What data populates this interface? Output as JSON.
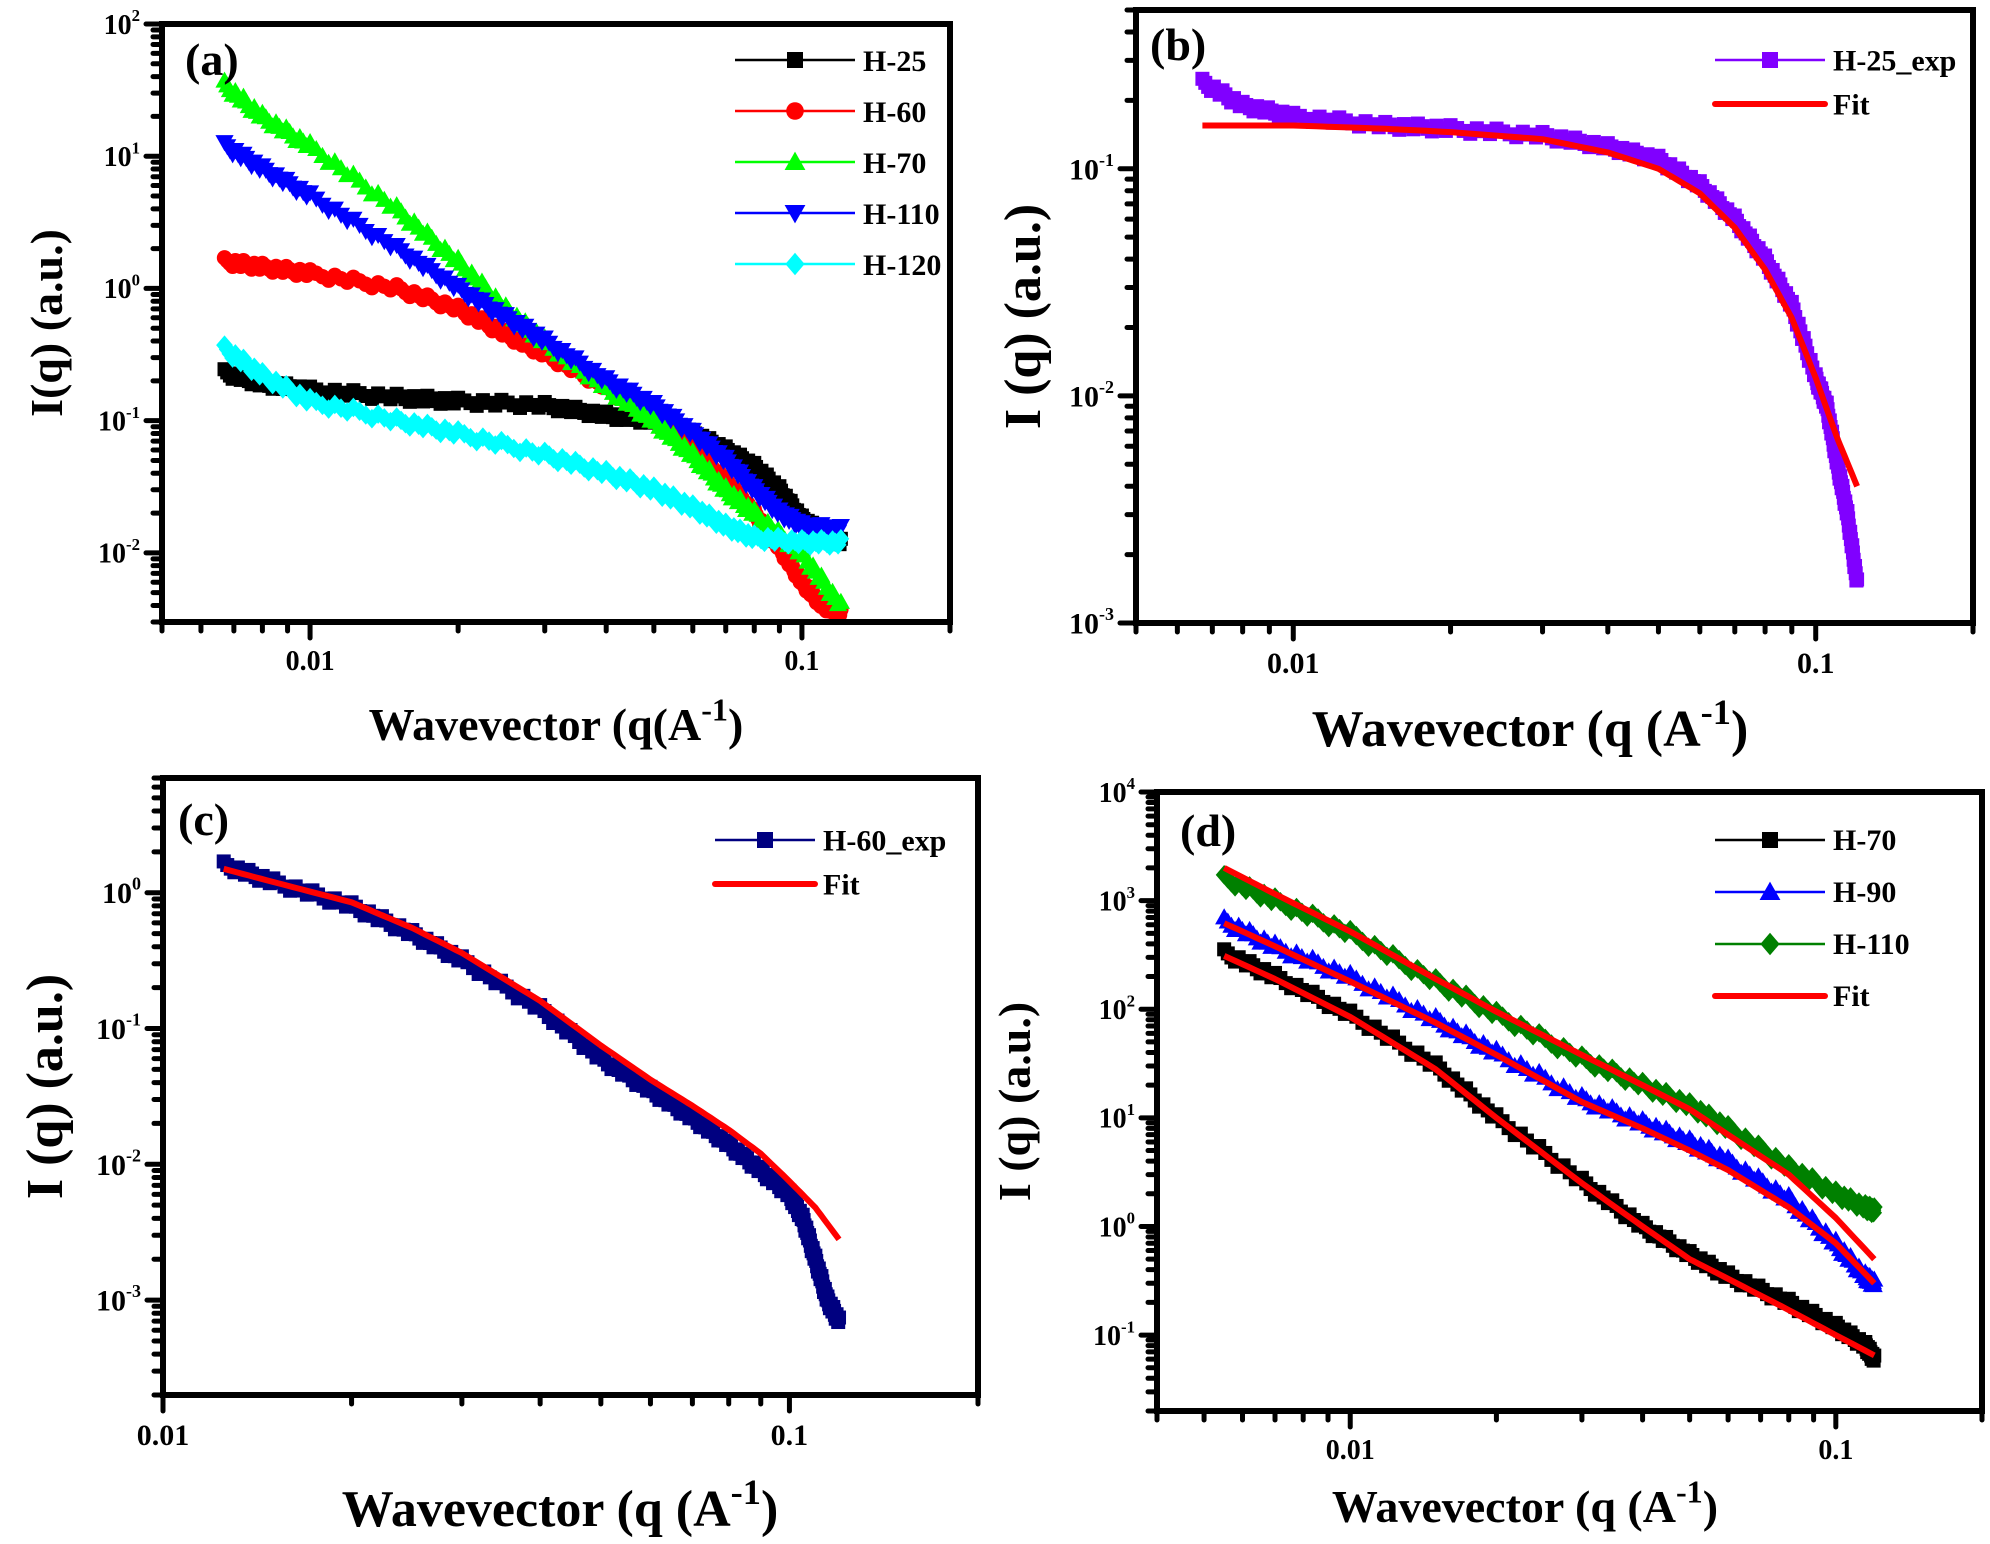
{
  "chart_data": [
    {
      "type": "scatter",
      "panel_label": "(a)",
      "xscale": "log",
      "yscale": "log",
      "xlim": [
        0.005,
        0.2
      ],
      "ylim": [
        0.003,
        100
      ],
      "xlabel": "Wavevector (q(A",
      "xlabel_sup": "-1",
      "xlabel_end": ")",
      "ylabel": "I(q) (a.u.)",
      "xticks": [
        {
          "v": 0.01,
          "label": "0.01"
        },
        {
          "v": 0.1,
          "label": "0.1"
        }
      ],
      "yticks": [
        {
          "v": 0.01,
          "base": "10",
          "exp": "-2"
        },
        {
          "v": 0.1,
          "base": "10",
          "exp": "-1"
        },
        {
          "v": 1,
          "base": "10",
          "exp": "0"
        },
        {
          "v": 10,
          "base": "10",
          "exp": "1"
        },
        {
          "v": 100,
          "base": "10",
          "exp": "2"
        }
      ],
      "legend_position": "top-right",
      "series": [
        {
          "name": "H-25",
          "color": "#000000",
          "marker": "square",
          "x": [
            0.0067,
            0.008,
            0.01,
            0.015,
            0.02,
            0.03,
            0.04,
            0.05,
            0.06,
            0.07,
            0.08,
            0.09,
            0.1,
            0.11,
            0.12
          ],
          "y": [
            0.23,
            0.19,
            0.17,
            0.15,
            0.14,
            0.13,
            0.11,
            0.1,
            0.08,
            0.06,
            0.045,
            0.03,
            0.018,
            0.014,
            0.012
          ]
        },
        {
          "name": "H-60",
          "color": "#ff0000",
          "marker": "circle",
          "x": [
            0.0067,
            0.008,
            0.01,
            0.015,
            0.02,
            0.025,
            0.03,
            0.04,
            0.05,
            0.06,
            0.07,
            0.08,
            0.09,
            0.1,
            0.11,
            0.12
          ],
          "y": [
            1.6,
            1.45,
            1.3,
            1.0,
            0.7,
            0.45,
            0.32,
            0.18,
            0.1,
            0.06,
            0.035,
            0.02,
            0.011,
            0.006,
            0.004,
            0.0035
          ]
        },
        {
          "name": "H-70",
          "color": "#00ff00",
          "marker": "triangle-up",
          "x": [
            0.0067,
            0.008,
            0.01,
            0.015,
            0.02,
            0.025,
            0.03,
            0.04,
            0.05,
            0.06,
            0.07,
            0.08,
            0.1,
            0.12
          ],
          "y": [
            35,
            20,
            12,
            4,
            1.6,
            0.7,
            0.4,
            0.18,
            0.1,
            0.055,
            0.03,
            0.02,
            0.01,
            0.004
          ]
        },
        {
          "name": "H-110",
          "color": "#0000ff",
          "marker": "triangle-down",
          "x": [
            0.0067,
            0.008,
            0.01,
            0.015,
            0.02,
            0.025,
            0.03,
            0.04,
            0.05,
            0.06,
            0.07,
            0.08,
            0.09,
            0.1,
            0.12
          ],
          "y": [
            12,
            8,
            5,
            2,
            1.0,
            0.6,
            0.4,
            0.2,
            0.13,
            0.08,
            0.05,
            0.03,
            0.02,
            0.016,
            0.015
          ]
        },
        {
          "name": "H-120",
          "color": "#00ffff",
          "marker": "diamond",
          "x": [
            0.0067,
            0.008,
            0.01,
            0.015,
            0.02,
            0.03,
            0.04,
            0.05,
            0.06,
            0.07,
            0.08,
            0.1,
            0.12
          ],
          "y": [
            0.35,
            0.22,
            0.14,
            0.1,
            0.08,
            0.055,
            0.04,
            0.03,
            0.022,
            0.016,
            0.013,
            0.012,
            0.012
          ]
        }
      ]
    },
    {
      "type": "scatter",
      "panel_label": "(b)",
      "xscale": "log",
      "yscale": "log",
      "xlim": [
        0.005,
        0.2
      ],
      "ylim": [
        0.001,
        0.5
      ],
      "xlabel": "Wavevector (q (A",
      "xlabel_sup": "-1",
      "xlabel_end": ")",
      "ylabel": "I (q) (a.u.)",
      "xticks": [
        {
          "v": 0.01,
          "label": "0.01"
        },
        {
          "v": 0.1,
          "label": "0.1"
        }
      ],
      "yticks": [
        {
          "v": 0.001,
          "base": "10",
          "exp": "-3"
        },
        {
          "v": 0.01,
          "base": "10",
          "exp": "-2"
        },
        {
          "v": 0.1,
          "base": "10",
          "exp": "-1"
        }
      ],
      "legend_position": "top-right",
      "series": [
        {
          "name": "H-25_exp",
          "color": "#8000ff",
          "marker": "square",
          "x": [
            0.0067,
            0.008,
            0.01,
            0.015,
            0.02,
            0.03,
            0.04,
            0.05,
            0.06,
            0.07,
            0.08,
            0.09,
            0.1,
            0.105,
            0.11,
            0.115,
            0.12
          ],
          "y": [
            0.24,
            0.19,
            0.17,
            0.155,
            0.15,
            0.14,
            0.125,
            0.11,
            0.085,
            0.06,
            0.04,
            0.025,
            0.012,
            0.009,
            0.005,
            0.003,
            0.0015
          ]
        },
        {
          "name": "Fit",
          "color": "#ff0000",
          "marker": "line",
          "x": [
            0.0067,
            0.01,
            0.015,
            0.02,
            0.03,
            0.04,
            0.05,
            0.06,
            0.07,
            0.08,
            0.09,
            0.1,
            0.11,
            0.12
          ],
          "y": [
            0.155,
            0.155,
            0.15,
            0.145,
            0.135,
            0.118,
            0.1,
            0.078,
            0.055,
            0.036,
            0.022,
            0.012,
            0.0065,
            0.004
          ]
        }
      ]
    },
    {
      "type": "scatter",
      "panel_label": "(c)",
      "xscale": "log",
      "yscale": "log",
      "xlim": [
        0.01,
        0.2
      ],
      "ylim": [
        0.0002,
        7
      ],
      "xlabel": "Wavevector (q (A",
      "xlabel_sup": "-1",
      "xlabel_end": ")",
      "ylabel": "I (q) (a.u.)",
      "xticks": [
        {
          "v": 0.01,
          "label": "0.01"
        },
        {
          "v": 0.1,
          "label": "0.1"
        }
      ],
      "yticks": [
        {
          "v": 0.001,
          "base": "10",
          "exp": "-3"
        },
        {
          "v": 0.01,
          "base": "10",
          "exp": "-2"
        },
        {
          "v": 0.1,
          "base": "10",
          "exp": "-1"
        },
        {
          "v": 1,
          "base": "10",
          "exp": "0"
        }
      ],
      "legend_position": "top-right",
      "series": [
        {
          "name": "H-60_exp",
          "color": "#000080",
          "marker": "square",
          "x": [
            0.0125,
            0.015,
            0.02,
            0.025,
            0.03,
            0.04,
            0.05,
            0.06,
            0.07,
            0.08,
            0.09,
            0.1,
            0.105,
            0.11,
            0.115,
            0.12
          ],
          "y": [
            1.6,
            1.2,
            0.8,
            0.5,
            0.32,
            0.14,
            0.06,
            0.035,
            0.022,
            0.014,
            0.009,
            0.006,
            0.004,
            0.002,
            0.001,
            0.0007
          ]
        },
        {
          "name": "Fit",
          "color": "#ff0000",
          "marker": "line",
          "x": [
            0.0125,
            0.015,
            0.02,
            0.025,
            0.03,
            0.04,
            0.05,
            0.06,
            0.07,
            0.08,
            0.09,
            0.1,
            0.11,
            0.12
          ],
          "y": [
            1.5,
            1.2,
            0.85,
            0.55,
            0.36,
            0.16,
            0.075,
            0.042,
            0.027,
            0.018,
            0.012,
            0.0075,
            0.0048,
            0.0028
          ]
        }
      ]
    },
    {
      "type": "scatter",
      "panel_label": "(d)",
      "xscale": "log",
      "yscale": "log",
      "xlim": [
        0.004,
        0.2
      ],
      "ylim": [
        0.02,
        10000
      ],
      "xlabel": "Wavevector (q (A",
      "xlabel_sup": "-1",
      "xlabel_end": ")",
      "ylabel": "I (q) (a.u.)",
      "xticks": [
        {
          "v": 0.01,
          "label": "0.01"
        },
        {
          "v": 0.1,
          "label": "0.1"
        }
      ],
      "yticks": [
        {
          "v": 0.1,
          "base": "10",
          "exp": "-1"
        },
        {
          "v": 1,
          "base": "10",
          "exp": "0"
        },
        {
          "v": 10,
          "base": "10",
          "exp": "1"
        },
        {
          "v": 100,
          "base": "10",
          "exp": "2"
        },
        {
          "v": 1000,
          "base": "10",
          "exp": "3"
        },
        {
          "v": 10000,
          "base": "10",
          "exp": "4"
        }
      ],
      "legend_position": "top-right",
      "series": [
        {
          "name": "H-70",
          "color": "#000000",
          "marker": "square",
          "x": [
            0.0055,
            0.007,
            0.01,
            0.015,
            0.02,
            0.03,
            0.04,
            0.05,
            0.06,
            0.08,
            0.1,
            0.115,
            0.12
          ],
          "y": [
            330,
            200,
            90,
            30,
            10,
            2.6,
            1.0,
            0.55,
            0.35,
            0.2,
            0.12,
            0.08,
            0.06
          ]
        },
        {
          "name": "H-90",
          "color": "#0000ff",
          "marker": "triangle-up",
          "x": [
            0.0055,
            0.007,
            0.01,
            0.015,
            0.02,
            0.03,
            0.04,
            0.05,
            0.06,
            0.08,
            0.1,
            0.115,
            0.12
          ],
          "y": [
            650,
            380,
            200,
            80,
            40,
            15,
            9,
            6,
            4,
            1.8,
            0.7,
            0.35,
            0.3
          ]
        },
        {
          "name": "H-110",
          "color": "#008000",
          "marker": "diamond",
          "x": [
            0.0055,
            0.007,
            0.01,
            0.015,
            0.02,
            0.03,
            0.04,
            0.05,
            0.06,
            0.08,
            0.1,
            0.115,
            0.12
          ],
          "y": [
            1600,
            1000,
            500,
            180,
            90,
            35,
            20,
            13,
            8,
            3.5,
            2.0,
            1.5,
            1.4
          ]
        },
        {
          "name": "Fit",
          "color": "#ff0000",
          "marker": "line",
          "fits": [
            {
              "x": [
                0.0055,
                0.007,
                0.01,
                0.015,
                0.02,
                0.03,
                0.04,
                0.05,
                0.06,
                0.08,
                0.1,
                0.12
              ],
              "y": [
                310,
                190,
                85,
                28,
                10,
                2.5,
                1.0,
                0.5,
                0.33,
                0.17,
                0.1,
                0.065
              ]
            },
            {
              "x": [
                0.0055,
                0.007,
                0.01,
                0.015,
                0.02,
                0.03,
                0.04,
                0.05,
                0.06,
                0.08,
                0.1,
                0.12
              ],
              "y": [
                620,
                380,
                180,
                75,
                38,
                14,
                8,
                5,
                3.3,
                1.5,
                0.7,
                0.3
              ]
            },
            {
              "x": [
                0.0055,
                0.007,
                0.01,
                0.015,
                0.02,
                0.03,
                0.04,
                0.05,
                0.06,
                0.08,
                0.1,
                0.12
              ],
              "y": [
                2000,
                1150,
                520,
                190,
                95,
                38,
                20,
                12,
                7,
                3.0,
                1.2,
                0.5
              ]
            }
          ]
        }
      ]
    }
  ]
}
